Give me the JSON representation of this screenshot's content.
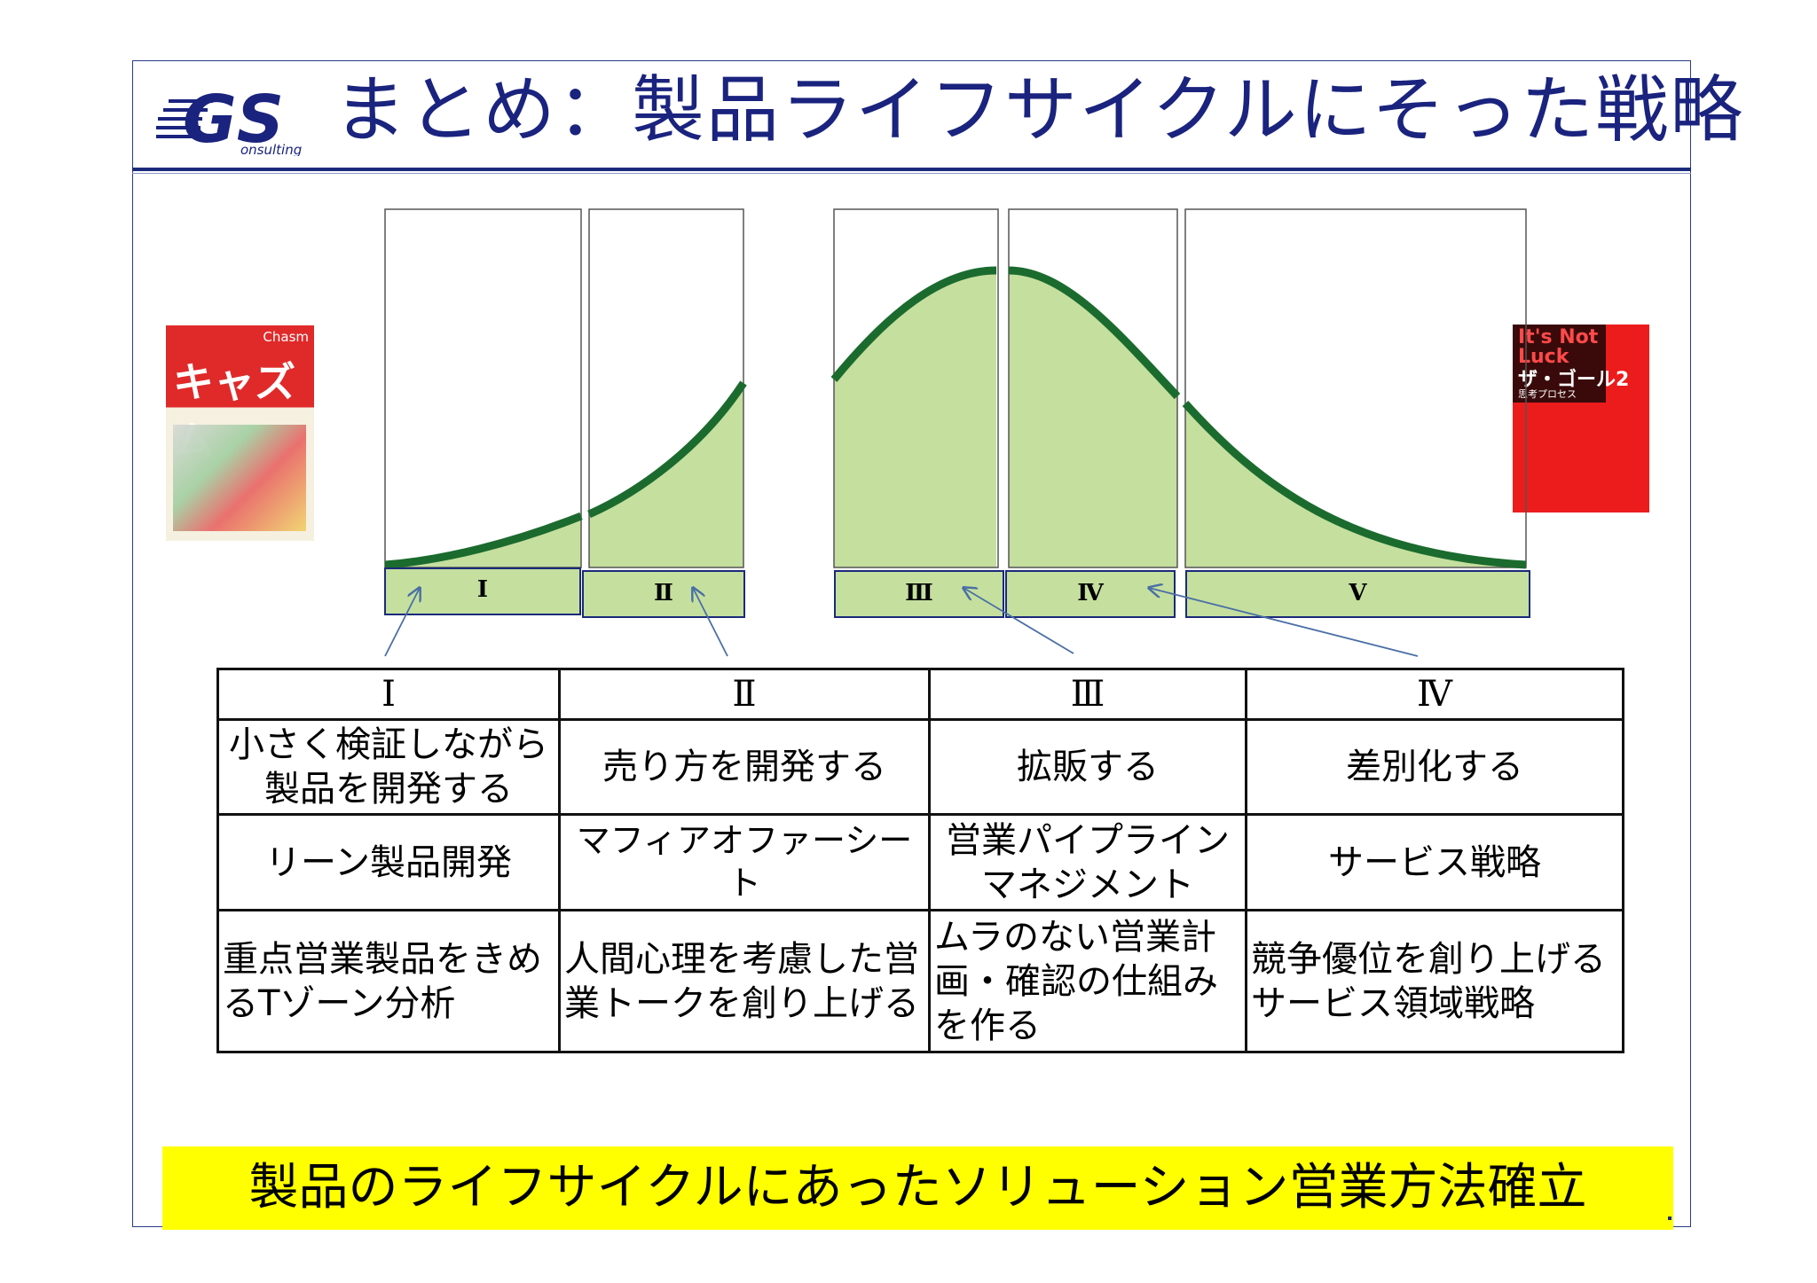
{
  "header": {
    "logo_text": "GS",
    "logo_subtext": "onsulting",
    "title": "まとめ：製品ライフサイクルにそった戦略"
  },
  "books": {
    "left": {
      "title": "キャズム",
      "corner": "Chasm"
    },
    "right": {
      "title_en": "It's Not Luck",
      "title_jp": "ザ・ゴール2",
      "subtitle": "思考プロセス"
    }
  },
  "stages": [
    "Ⅰ",
    "Ⅱ",
    "Ⅲ",
    "Ⅳ",
    "Ⅴ"
  ],
  "table": {
    "headers": [
      "Ⅰ",
      "Ⅱ",
      "Ⅲ",
      "Ⅳ"
    ],
    "rows": [
      [
        "小さく検証しながら製品を開発する",
        "売り方を開発する",
        "拡販する",
        "差別化する"
      ],
      [
        "リーン製品開発",
        "マフィアオファーシート",
        "営業パイプラインマネジメント",
        "サービス戦略"
      ],
      [
        "重点営業製品をきめるTゾーン分析",
        "人間心理を考慮した営業トークを創り上げる",
        "ムラのない営業計画・確認の仕組みを作る",
        "競争優位を創り上げるサービス領域戦略"
      ]
    ]
  },
  "banner": "製品のライフサイクルにあったソリューション営業方法確立",
  "colors": {
    "title": "#1a237e",
    "curve": "#1b6b2e",
    "fill": "#c5df9f",
    "banner": "#ffff00",
    "arrow": "#4a6fa5"
  }
}
